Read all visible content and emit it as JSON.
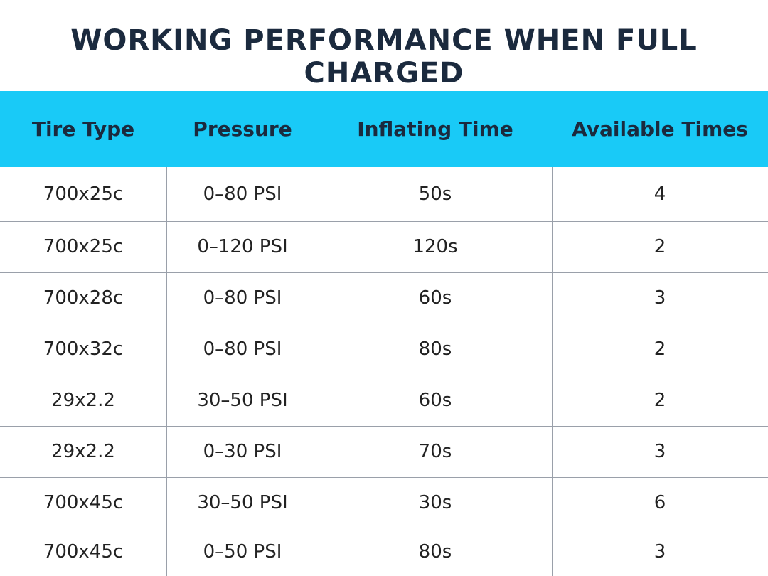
{
  "header": {
    "title": "WORKING PERFORMANCE WHEN FULL CHARGED"
  },
  "table": {
    "columns": [
      "Tire Type",
      "Pressure",
      "Inflating Time",
      "Available Times"
    ],
    "rows": [
      [
        "700x25c",
        "0–80 PSI",
        "50s",
        "4"
      ],
      [
        "700x25c",
        "0–120 PSI",
        "120s",
        "2"
      ],
      [
        "700x28c",
        "0–80 PSI",
        "60s",
        "3"
      ],
      [
        "700x32c",
        "0–80 PSI",
        "80s",
        "2"
      ],
      [
        "29x2.2",
        "30–50 PSI",
        "60s",
        "2"
      ],
      [
        "29x2.2",
        "0–30 PSI",
        "70s",
        "3"
      ],
      [
        "700x45c",
        "30–50 PSI",
        "30s",
        "6"
      ],
      [
        "700x45c",
        "0–50 PSI",
        "80s",
        "3"
      ]
    ]
  }
}
